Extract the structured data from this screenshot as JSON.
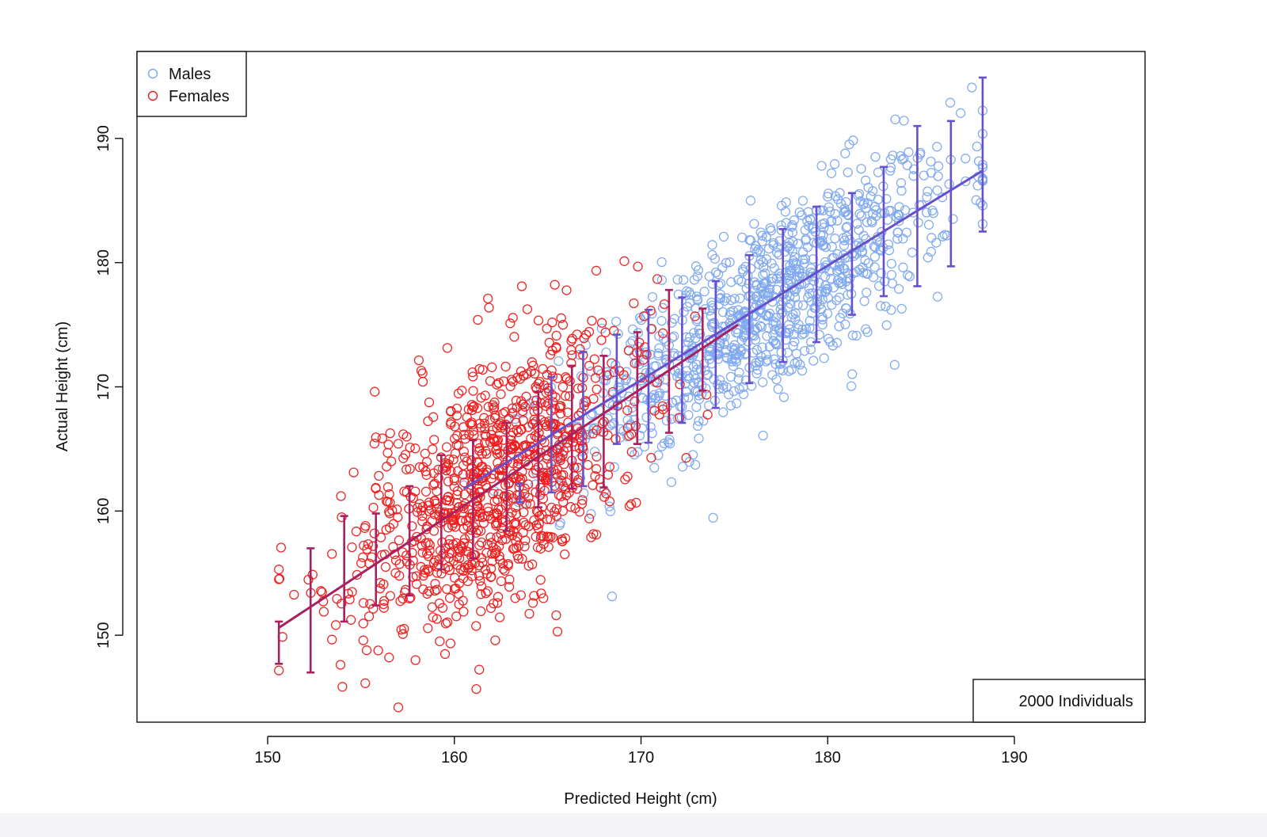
{
  "chart_data": {
    "type": "scatter",
    "title": "",
    "xlabel": "Predicted Height (cm)",
    "ylabel": "Actual Height (cm)",
    "xlim": [
      143,
      197
    ],
    "ylim": [
      143,
      197
    ],
    "xticks": [
      150,
      160,
      170,
      180,
      190
    ],
    "yticks": [
      150,
      160,
      170,
      180,
      190
    ],
    "grid": false,
    "legend": {
      "position": "top-left",
      "entries": [
        {
          "label": "Males",
          "color": "#7ea8ee",
          "marker": "open-circle"
        },
        {
          "label": "Females",
          "color": "#ee1c1c",
          "marker": "open-circle"
        }
      ]
    },
    "annotation": {
      "text": "2000 Individuals",
      "position": "bottom-right"
    },
    "series": [
      {
        "name": "Males",
        "color": "#7ea8ee",
        "n": 1000,
        "x_mean": 176.5,
        "x_sd": 5.2,
        "slope": 0.94,
        "intercept": 10.3,
        "resid_sd": 3.7,
        "x_range": [
          160.5,
          188.3
        ]
      },
      {
        "name": "Females",
        "color": "#ee1c1c",
        "n": 1000,
        "x_mean": 162.0,
        "x_sd": 3.9,
        "slope": 0.96,
        "intercept": 6.6,
        "resid_sd": 5.0,
        "x_range": [
          150.6,
          175.2
        ]
      }
    ],
    "fit_lines": [
      {
        "name": "Females fit",
        "color": "#a8205e",
        "x": [
          150.6,
          175.2
        ],
        "y": [
          150.6,
          175.0
        ]
      },
      {
        "name": "Males fit",
        "color": "#6650cc",
        "x": [
          160.5,
          188.3
        ],
        "y": [
          161.8,
          187.4
        ]
      }
    ],
    "error_bars": [
      {
        "x": 150.6,
        "low": 147.7,
        "high": 151.1,
        "series": "Females"
      },
      {
        "x": 152.3,
        "low": 147.0,
        "high": 157.0,
        "series": "Females"
      },
      {
        "x": 154.1,
        "low": 151.1,
        "high": 159.6,
        "series": "Females"
      },
      {
        "x": 155.8,
        "low": 152.4,
        "high": 159.8,
        "series": "Females"
      },
      {
        "x": 157.6,
        "low": 153.2,
        "high": 162.0,
        "series": "Females"
      },
      {
        "x": 159.3,
        "low": 155.3,
        "high": 164.5,
        "series": "Females"
      },
      {
        "x": 161.0,
        "low": 156.2,
        "high": 165.7,
        "series": "Females"
      },
      {
        "x": 162.8,
        "low": 158.4,
        "high": 167.1,
        "series": "Females"
      },
      {
        "x": 164.5,
        "low": 160.3,
        "high": 169.6,
        "series": "Females"
      },
      {
        "x": 166.3,
        "low": 161.8,
        "high": 171.7,
        "series": "Females"
      },
      {
        "x": 168.0,
        "low": 161.9,
        "high": 172.5,
        "series": "Females"
      },
      {
        "x": 169.8,
        "low": 165.4,
        "high": 174.4,
        "series": "Females"
      },
      {
        "x": 171.5,
        "low": 166.3,
        "high": 177.8,
        "series": "Females"
      },
      {
        "x": 173.3,
        "low": 169.7,
        "high": 176.3,
        "series": "Females"
      },
      {
        "x": 163.5,
        "low": 160.7,
        "high": 162.2,
        "series": "Males"
      },
      {
        "x": 165.2,
        "low": 161.5,
        "high": 170.8,
        "series": "Males"
      },
      {
        "x": 166.9,
        "low": 162.0,
        "high": 172.8,
        "series": "Males"
      },
      {
        "x": 168.7,
        "low": 165.4,
        "high": 174.2,
        "series": "Males"
      },
      {
        "x": 170.4,
        "low": 165.5,
        "high": 176.2,
        "series": "Males"
      },
      {
        "x": 172.2,
        "low": 167.1,
        "high": 177.2,
        "series": "Males"
      },
      {
        "x": 174.0,
        "low": 168.3,
        "high": 178.5,
        "series": "Males"
      },
      {
        "x": 175.8,
        "low": 170.3,
        "high": 180.6,
        "series": "Males"
      },
      {
        "x": 177.6,
        "low": 172.0,
        "high": 182.7,
        "series": "Males"
      },
      {
        "x": 179.4,
        "low": 173.6,
        "high": 184.5,
        "series": "Males"
      },
      {
        "x": 181.3,
        "low": 175.8,
        "high": 185.6,
        "series": "Males"
      },
      {
        "x": 183.0,
        "low": 177.3,
        "high": 187.7,
        "series": "Males"
      },
      {
        "x": 184.8,
        "low": 178.1,
        "high": 191.0,
        "series": "Males"
      },
      {
        "x": 186.6,
        "low": 179.7,
        "high": 191.4,
        "series": "Males"
      },
      {
        "x": 188.3,
        "low": 182.5,
        "high": 194.9,
        "series": "Males"
      }
    ]
  }
}
